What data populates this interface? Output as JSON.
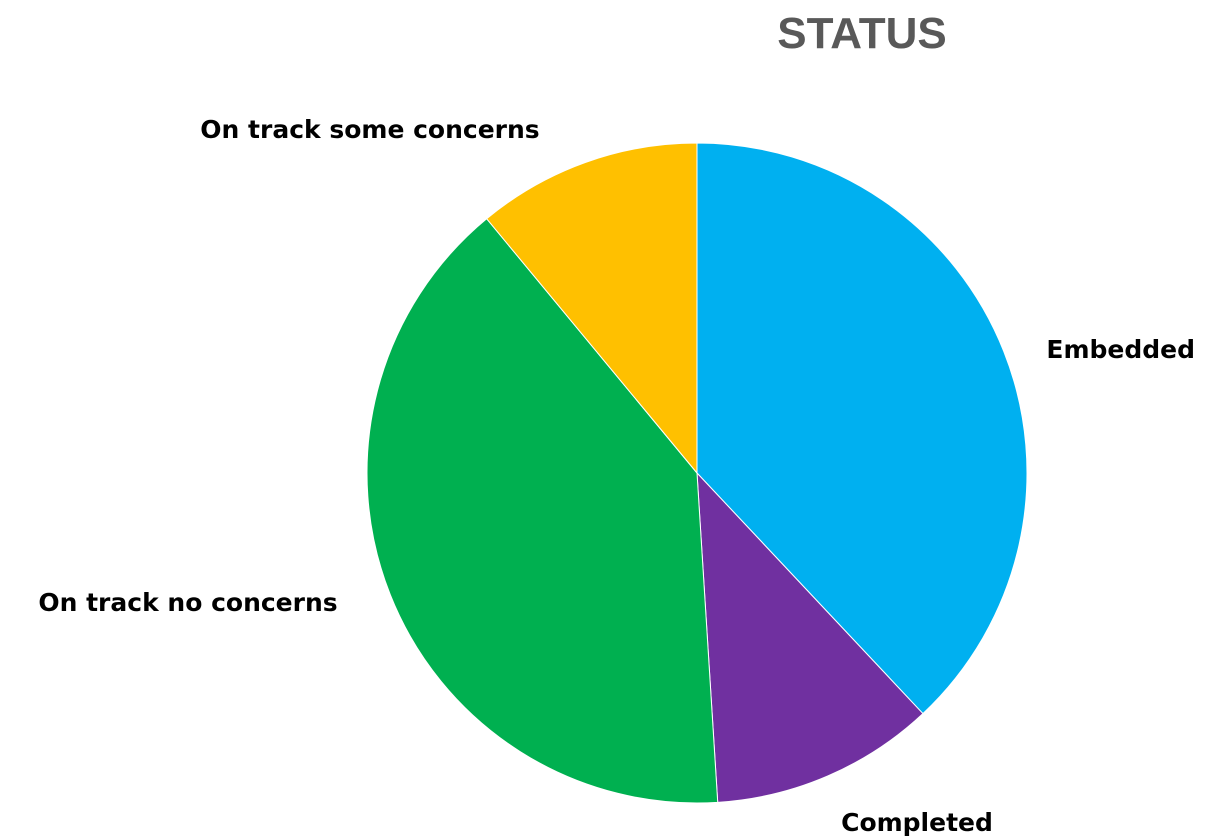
{
  "chart_data": {
    "type": "pie",
    "title": "STATUS",
    "slices": [
      {
        "label": "Embedded",
        "value": 38,
        "color": "#00B0F0"
      },
      {
        "label": "Completed",
        "value": 11,
        "color": "#7030A0"
      },
      {
        "label": "On track no concerns",
        "value": 40,
        "color": "#00B050"
      },
      {
        "label": "On track some concerns",
        "value": 11,
        "color": "#FFC000"
      }
    ],
    "start_angle": "12 o'clock",
    "direction": "clockwise",
    "legend": "none",
    "labels": "category names outside slices"
  }
}
